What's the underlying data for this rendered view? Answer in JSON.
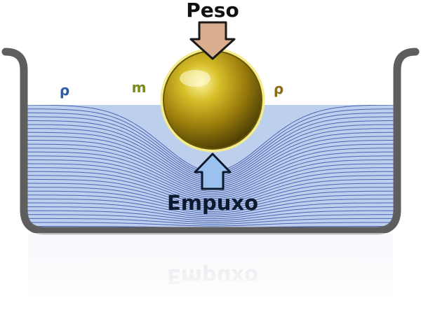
{
  "labels": {
    "weight": "Peso",
    "buoyancy": "Empuxo",
    "fluid_density_left": "ρ",
    "mass": "m",
    "density_right": "ρ"
  },
  "colors": {
    "container_wall": "#5e5e5e",
    "liquid": "#bcd0ee",
    "stream_lines": "#2a3f9c",
    "weight_arrow": "#d9ae8e",
    "buoyancy_arrow": "#9bc2ef",
    "sphere": "#b59a18",
    "symbol_left": "#2b5ea8",
    "symbol_mass": "#7a8a1c",
    "symbol_right": "#8a6d18"
  },
  "icons": {
    "weight_arrow": "down-arrow-icon",
    "buoyancy_arrow": "up-arrow-icon"
  }
}
